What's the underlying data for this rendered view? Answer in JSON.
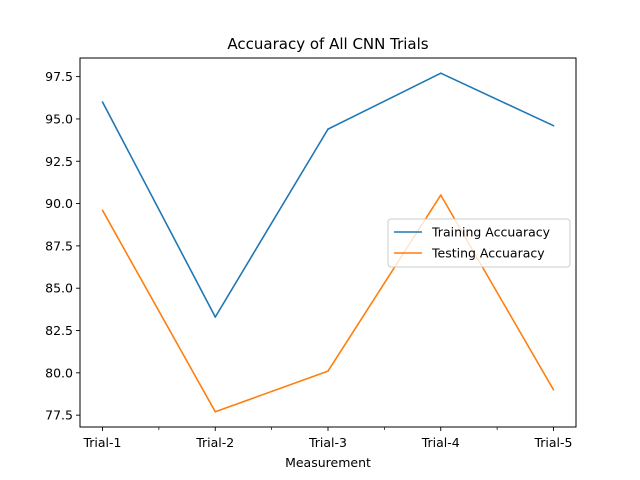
{
  "chart_data": {
    "type": "line",
    "title": "Accuaracy of All CNN Trials",
    "xlabel": "Measurement",
    "ylabel": "",
    "categories": [
      "Trial-1",
      "Trial-2",
      "Trial-3",
      "Trial-4",
      "Trial-5"
    ],
    "series": [
      {
        "name": "Training Accuaracy",
        "color": "#1f77b4",
        "values": [
          96.0,
          83.3,
          94.4,
          97.7,
          94.6
        ]
      },
      {
        "name": "Testing Accuaracy",
        "color": "#ff7f0e",
        "values": [
          89.6,
          77.7,
          80.1,
          90.5,
          79.0
        ]
      }
    ],
    "ylim": [
      76.8,
      98.6
    ],
    "yticks": [
      "77.5",
      "80.0",
      "82.5",
      "85.0",
      "87.5",
      "90.0",
      "92.5",
      "95.0",
      "97.5"
    ],
    "minor_x_ticks": true,
    "grid": false,
    "legend_position": "center-right"
  }
}
